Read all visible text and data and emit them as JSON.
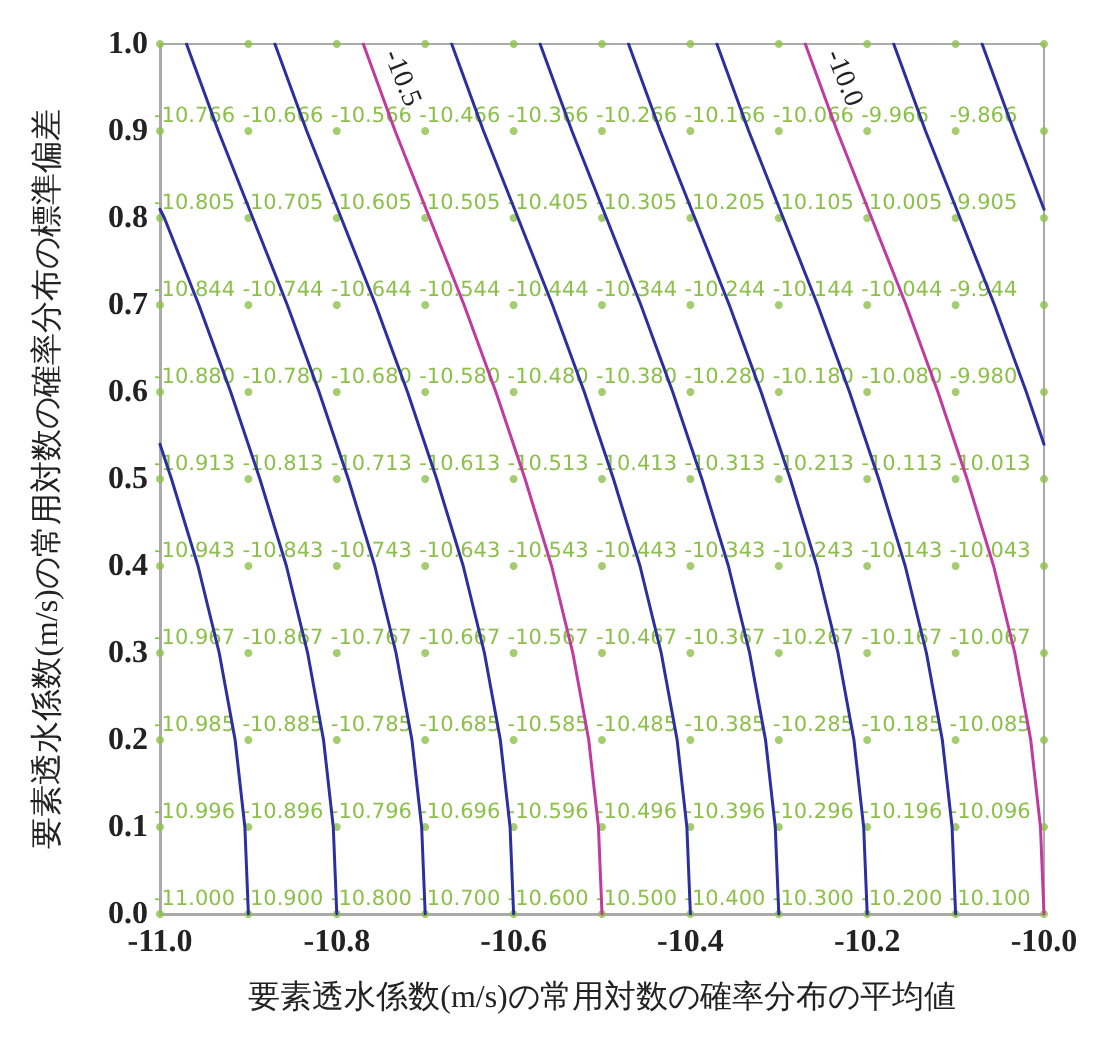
{
  "chart_data": {
    "type": "scatter",
    "xlabel": "要素透水係数(m/s)の常用対数の確率分布の平均値",
    "ylabel": "要素透水係数(m/s)の常用対数の確率分布の標準偏差",
    "xlim": [
      -11,
      -10
    ],
    "ylim": [
      0,
      1
    ],
    "xticks": [
      {
        "value": -11,
        "label": "-11.0"
      },
      {
        "value": -10.8,
        "label": "-10.8"
      },
      {
        "value": -10.6,
        "label": "-10.6"
      },
      {
        "value": -10.4,
        "label": "-10.4"
      },
      {
        "value": -10.2,
        "label": "-10.2"
      },
      {
        "value": -10,
        "label": "-10.0"
      }
    ],
    "yticks": [
      {
        "value": 0,
        "label": "0.0"
      },
      0.1,
      0.2,
      0.3,
      0.4,
      0.5,
      0.6,
      0.7,
      0.8,
      0.9,
      {
        "value": 1,
        "label": "1.0"
      }
    ],
    "grid": false,
    "legend": false,
    "line_style": "solid",
    "annotations": [
      {
        "text": "-11.000",
        "x": -11,
        "y": 0
      },
      {
        "text": "-10.900",
        "x": -10.9,
        "y": 0
      },
      {
        "text": "-10.800",
        "x": -10.8,
        "y": 0
      },
      {
        "text": "-10.700",
        "x": -10.7,
        "y": 0
      },
      {
        "text": "-10.600",
        "x": -10.6,
        "y": 0
      },
      {
        "text": "-10.500",
        "x": -10.5,
        "y": 0
      },
      {
        "text": "-10.400",
        "x": -10.4,
        "y": 0
      },
      {
        "text": "-10.300",
        "x": -10.3,
        "y": 0
      },
      {
        "text": "-10.200",
        "x": -10.2,
        "y": 0
      },
      {
        "text": "-10.100",
        "x": -10.1,
        "y": 0
      },
      {
        "text": "-10.996",
        "x": -11,
        "y": 0.1
      },
      {
        "text": "-10.896",
        "x": -10.9,
        "y": 0.1
      },
      {
        "text": "-10.796",
        "x": -10.8,
        "y": 0.1
      },
      {
        "text": "-10.696",
        "x": -10.7,
        "y": 0.1
      },
      {
        "text": "-10.596",
        "x": -10.6,
        "y": 0.1
      },
      {
        "text": "-10.496",
        "x": -10.5,
        "y": 0.1
      },
      {
        "text": "-10.396",
        "x": -10.4,
        "y": 0.1
      },
      {
        "text": "-10.296",
        "x": -10.3,
        "y": 0.1
      },
      {
        "text": "-10.196",
        "x": -10.2,
        "y": 0.1
      },
      {
        "text": "-10.096",
        "x": -10.1,
        "y": 0.1
      },
      {
        "text": "-10.985",
        "x": -11,
        "y": 0.2
      },
      {
        "text": "-10.885",
        "x": -10.9,
        "y": 0.2
      },
      {
        "text": "-10.785",
        "x": -10.8,
        "y": 0.2
      },
      {
        "text": "-10.685",
        "x": -10.7,
        "y": 0.2
      },
      {
        "text": "-10.585",
        "x": -10.6,
        "y": 0.2
      },
      {
        "text": "-10.485",
        "x": -10.5,
        "y": 0.2
      },
      {
        "text": "-10.385",
        "x": -10.4,
        "y": 0.2
      },
      {
        "text": "-10.285",
        "x": -10.3,
        "y": 0.2
      },
      {
        "text": "-10.185",
        "x": -10.2,
        "y": 0.2
      },
      {
        "text": "-10.085",
        "x": -10.1,
        "y": 0.2
      },
      {
        "text": "-10.967",
        "x": -11,
        "y": 0.3
      },
      {
        "text": "-10.867",
        "x": -10.9,
        "y": 0.3
      },
      {
        "text": "-10.767",
        "x": -10.8,
        "y": 0.3
      },
      {
        "text": "-10.667",
        "x": -10.7,
        "y": 0.3
      },
      {
        "text": "-10.567",
        "x": -10.6,
        "y": 0.3
      },
      {
        "text": "-10.467",
        "x": -10.5,
        "y": 0.3
      },
      {
        "text": "-10.367",
        "x": -10.4,
        "y": 0.3
      },
      {
        "text": "-10.267",
        "x": -10.3,
        "y": 0.3
      },
      {
        "text": "-10.167",
        "x": -10.2,
        "y": 0.3
      },
      {
        "text": "-10.067",
        "x": -10.1,
        "y": 0.3
      },
      {
        "text": "-10.943",
        "x": -11,
        "y": 0.4
      },
      {
        "text": "-10.843",
        "x": -10.9,
        "y": 0.4
      },
      {
        "text": "-10.743",
        "x": -10.8,
        "y": 0.4
      },
      {
        "text": "-10.643",
        "x": -10.7,
        "y": 0.4
      },
      {
        "text": "-10.543",
        "x": -10.6,
        "y": 0.4
      },
      {
        "text": "-10.443",
        "x": -10.5,
        "y": 0.4
      },
      {
        "text": "-10.343",
        "x": -10.4,
        "y": 0.4
      },
      {
        "text": "-10.243",
        "x": -10.3,
        "y": 0.4
      },
      {
        "text": "-10.143",
        "x": -10.2,
        "y": 0.4
      },
      {
        "text": "-10.043",
        "x": -10.1,
        "y": 0.4
      },
      {
        "text": "-10.913",
        "x": -11,
        "y": 0.5
      },
      {
        "text": "-10.813",
        "x": -10.9,
        "y": 0.5
      },
      {
        "text": "-10.713",
        "x": -10.8,
        "y": 0.5
      },
      {
        "text": "-10.613",
        "x": -10.7,
        "y": 0.5
      },
      {
        "text": "-10.513",
        "x": -10.6,
        "y": 0.5
      },
      {
        "text": "-10.413",
        "x": -10.5,
        "y": 0.5
      },
      {
        "text": "-10.313",
        "x": -10.4,
        "y": 0.5
      },
      {
        "text": "-10.213",
        "x": -10.3,
        "y": 0.5
      },
      {
        "text": "-10.113",
        "x": -10.2,
        "y": 0.5
      },
      {
        "text": "-10.013",
        "x": -10.1,
        "y": 0.5
      },
      {
        "text": "-10.880",
        "x": -11,
        "y": 0.6
      },
      {
        "text": "-10.780",
        "x": -10.9,
        "y": 0.6
      },
      {
        "text": "-10.680",
        "x": -10.8,
        "y": 0.6
      },
      {
        "text": "-10.580",
        "x": -10.7,
        "y": 0.6
      },
      {
        "text": "-10.480",
        "x": -10.6,
        "y": 0.6
      },
      {
        "text": "-10.380",
        "x": -10.5,
        "y": 0.6
      },
      {
        "text": "-10.280",
        "x": -10.4,
        "y": 0.6
      },
      {
        "text": "-10.180",
        "x": -10.3,
        "y": 0.6
      },
      {
        "text": "-10.080",
        "x": -10.2,
        "y": 0.6
      },
      {
        "text": "-9.980",
        "x": -10.1,
        "y": 0.6
      },
      {
        "text": "-10.844",
        "x": -11,
        "y": 0.7
      },
      {
        "text": "-10.744",
        "x": -10.9,
        "y": 0.7
      },
      {
        "text": "-10.644",
        "x": -10.8,
        "y": 0.7
      },
      {
        "text": "-10.544",
        "x": -10.7,
        "y": 0.7
      },
      {
        "text": "-10.444",
        "x": -10.6,
        "y": 0.7
      },
      {
        "text": "-10.344",
        "x": -10.5,
        "y": 0.7
      },
      {
        "text": "-10.244",
        "x": -10.4,
        "y": 0.7
      },
      {
        "text": "-10.144",
        "x": -10.3,
        "y": 0.7
      },
      {
        "text": "-10.044",
        "x": -10.2,
        "y": 0.7
      },
      {
        "text": "-9.944",
        "x": -10.1,
        "y": 0.7
      },
      {
        "text": "-10.805",
        "x": -11,
        "y": 0.8
      },
      {
        "text": "-10.705",
        "x": -10.9,
        "y": 0.8
      },
      {
        "text": "-10.605",
        "x": -10.8,
        "y": 0.8
      },
      {
        "text": "-10.505",
        "x": -10.7,
        "y": 0.8
      },
      {
        "text": "-10.405",
        "x": -10.6,
        "y": 0.8
      },
      {
        "text": "-10.305",
        "x": -10.5,
        "y": 0.8
      },
      {
        "text": "-10.205",
        "x": -10.4,
        "y": 0.8
      },
      {
        "text": "-10.105",
        "x": -10.3,
        "y": 0.8
      },
      {
        "text": "-10.005",
        "x": -10.2,
        "y": 0.8
      },
      {
        "text": "-9.905",
        "x": -10.1,
        "y": 0.8
      },
      {
        "text": "-10.766",
        "x": -11,
        "y": 0.9
      },
      {
        "text": "-10.666",
        "x": -10.9,
        "y": 0.9
      },
      {
        "text": "-10.566",
        "x": -10.8,
        "y": 0.9
      },
      {
        "text": "-10.466",
        "x": -10.7,
        "y": 0.9
      },
      {
        "text": "-10.366",
        "x": -10.6,
        "y": 0.9
      },
      {
        "text": "-10.266",
        "x": -10.5,
        "y": 0.9
      },
      {
        "text": "-10.166",
        "x": -10.4,
        "y": 0.9
      },
      {
        "text": "-10.066",
        "x": -10.3,
        "y": 0.9
      },
      {
        "text": "-9.966",
        "x": -10.2,
        "y": 0.9
      },
      {
        "text": "-9.866",
        "x": -10.1,
        "y": 0.9
      }
    ],
    "series": [
      {
        "type": "scatter",
        "marker": "circle",
        "color": "#8cc04a",
        "x": [
          -11,
          -10.9,
          -10.8,
          -10.7,
          -10.6,
          -10.5,
          -10.4,
          -10.3,
          -10.2,
          -10.1,
          -10,
          -11,
          -10.9,
          -10.8,
          -10.7,
          -10.6,
          -10.5,
          -10.4,
          -10.3,
          -10.2,
          -10.1,
          -10,
          -11,
          -10.9,
          -10.8,
          -10.7,
          -10.6,
          -10.5,
          -10.4,
          -10.3,
          -10.2,
          -10.1,
          -10,
          -11,
          -10.9,
          -10.8,
          -10.7,
          -10.6,
          -10.5,
          -10.4,
          -10.3,
          -10.2,
          -10.1,
          -10,
          -11,
          -10.9,
          -10.8,
          -10.7,
          -10.6,
          -10.5,
          -10.4,
          -10.3,
          -10.2,
          -10.1,
          -10,
          -11,
          -10.9,
          -10.8,
          -10.7,
          -10.6,
          -10.5,
          -10.4,
          -10.3,
          -10.2,
          -10.1,
          -10,
          -11,
          -10.9,
          -10.8,
          -10.7,
          -10.6,
          -10.5,
          -10.4,
          -10.3,
          -10.2,
          -10.1,
          -10,
          -11,
          -10.9,
          -10.8,
          -10.7,
          -10.6,
          -10.5,
          -10.4,
          -10.3,
          -10.2,
          -10.1,
          -10,
          -11,
          -10.9,
          -10.8,
          -10.7,
          -10.6,
          -10.5,
          -10.4,
          -10.3,
          -10.2,
          -10.1,
          -10,
          -11,
          -10.9,
          -10.8,
          -10.7,
          -10.6,
          -10.5,
          -10.4,
          -10.3,
          -10.2,
          -10.1,
          -10,
          -11,
          -10.9,
          -10.8,
          -10.7,
          -10.6,
          -10.5,
          -10.4,
          -10.3,
          -10.2,
          -10.1,
          -10
        ],
        "values": [
          0,
          0,
          0,
          0,
          0,
          0,
          0,
          0,
          0,
          0,
          0,
          0.1,
          0.1,
          0.1,
          0.1,
          0.1,
          0.1,
          0.1,
          0.1,
          0.1,
          0.1,
          0.1,
          0.2,
          0.2,
          0.2,
          0.2,
          0.2,
          0.2,
          0.2,
          0.2,
          0.2,
          0.2,
          0.2,
          0.3,
          0.3,
          0.3,
          0.3,
          0.3,
          0.3,
          0.3,
          0.3,
          0.3,
          0.3,
          0.3,
          0.4,
          0.4,
          0.4,
          0.4,
          0.4,
          0.4,
          0.4,
          0.4,
          0.4,
          0.4,
          0.4,
          0.5,
          0.5,
          0.5,
          0.5,
          0.5,
          0.5,
          0.5,
          0.5,
          0.5,
          0.5,
          0.5,
          0.6,
          0.6,
          0.6,
          0.6,
          0.6,
          0.6,
          0.6,
          0.6,
          0.6,
          0.6,
          0.6,
          0.7,
          0.7,
          0.7,
          0.7,
          0.7,
          0.7,
          0.7,
          0.7,
          0.7,
          0.7,
          0.7,
          0.8,
          0.8,
          0.8,
          0.8,
          0.8,
          0.8,
          0.8,
          0.8,
          0.8,
          0.8,
          0.8,
          0.9,
          0.9,
          0.9,
          0.9,
          0.9,
          0.9,
          0.9,
          0.9,
          0.9,
          0.9,
          0.9,
          1,
          1,
          1,
          1,
          1,
          1,
          1,
          1,
          1,
          1,
          1
        ]
      },
      {
        "type": "line",
        "marker": "none",
        "color": "#2b2fa0",
        "x": [
          -10.9,
          -10.904,
          -10.915,
          -10.933,
          -10.957,
          -10.987,
          -11
        ],
        "values": [
          0,
          0.1,
          0.2,
          0.3,
          0.4,
          0.5,
          0.54
        ]
      },
      {
        "type": "line",
        "marker": "none",
        "color": "#2b2fa0",
        "x": [
          -10.8,
          -10.804,
          -10.815,
          -10.833,
          -10.857,
          -10.887,
          -10.92,
          -10.956,
          -10.995,
          -11
        ],
        "values": [
          0,
          0.1,
          0.2,
          0.3,
          0.4,
          0.5,
          0.6,
          0.7,
          0.8,
          0.81
        ]
      },
      {
        "type": "line",
        "marker": "none",
        "color": "#2b2fa0",
        "x": [
          -10.7,
          -10.704,
          -10.715,
          -10.733,
          -10.757,
          -10.787,
          -10.82,
          -10.856,
          -10.895,
          -10.934,
          -10.97
        ],
        "values": [
          0,
          0.1,
          0.2,
          0.3,
          0.4,
          0.5,
          0.6,
          0.7,
          0.8,
          0.9,
          1
        ]
      },
      {
        "type": "line",
        "marker": "none",
        "color": "#2b2fa0",
        "x": [
          -10.6,
          -10.604,
          -10.615,
          -10.633,
          -10.657,
          -10.687,
          -10.72,
          -10.756,
          -10.795,
          -10.834,
          -10.87
        ],
        "values": [
          0,
          0.1,
          0.2,
          0.3,
          0.4,
          0.5,
          0.6,
          0.7,
          0.8,
          0.9,
          1
        ]
      },
      {
        "type": "line",
        "marker": "none",
        "name": "-10.5",
        "color": "#c03aa0",
        "x": [
          -10.5,
          -10.504,
          -10.515,
          -10.533,
          -10.557,
          -10.587,
          -10.62,
          -10.656,
          -10.695,
          -10.734,
          -10.77
        ],
        "values": [
          0,
          0.1,
          0.2,
          0.3,
          0.4,
          0.5,
          0.6,
          0.7,
          0.8,
          0.9,
          1
        ]
      },
      {
        "type": "line",
        "marker": "none",
        "color": "#2b2fa0",
        "x": [
          -10.4,
          -10.404,
          -10.415,
          -10.433,
          -10.457,
          -10.487,
          -10.52,
          -10.556,
          -10.595,
          -10.634,
          -10.67
        ],
        "values": [
          0,
          0.1,
          0.2,
          0.3,
          0.4,
          0.5,
          0.6,
          0.7,
          0.8,
          0.9,
          1
        ]
      },
      {
        "type": "line",
        "marker": "none",
        "color": "#2b2fa0",
        "x": [
          -10.3,
          -10.304,
          -10.315,
          -10.333,
          -10.357,
          -10.387,
          -10.42,
          -10.456,
          -10.495,
          -10.534,
          -10.57
        ],
        "values": [
          0,
          0.1,
          0.2,
          0.3,
          0.4,
          0.5,
          0.6,
          0.7,
          0.8,
          0.9,
          1
        ]
      },
      {
        "type": "line",
        "marker": "none",
        "color": "#2b2fa0",
        "x": [
          -10.2,
          -10.204,
          -10.215,
          -10.233,
          -10.257,
          -10.287,
          -10.32,
          -10.356,
          -10.395,
          -10.434,
          -10.47
        ],
        "values": [
          0,
          0.1,
          0.2,
          0.3,
          0.4,
          0.5,
          0.6,
          0.7,
          0.8,
          0.9,
          1
        ]
      },
      {
        "type": "line",
        "marker": "none",
        "color": "#2b2fa0",
        "x": [
          -10.1,
          -10.104,
          -10.115,
          -10.133,
          -10.157,
          -10.187,
          -10.22,
          -10.256,
          -10.295,
          -10.334,
          -10.37
        ],
        "values": [
          0,
          0.1,
          0.2,
          0.3,
          0.4,
          0.5,
          0.6,
          0.7,
          0.8,
          0.9,
          1
        ]
      },
      {
        "type": "line",
        "marker": "none",
        "name": "-10.0",
        "color": "#c03aa0",
        "x": [
          -10,
          -10.004,
          -10.015,
          -10.033,
          -10.057,
          -10.087,
          -10.12,
          -10.156,
          -10.195,
          -10.234,
          -10.27
        ],
        "values": [
          0,
          0.1,
          0.2,
          0.3,
          0.4,
          0.5,
          0.6,
          0.7,
          0.8,
          0.9,
          1
        ]
      },
      {
        "type": "line",
        "marker": "none",
        "color": "#2b2fa0",
        "x": [
          -10,
          -10.02,
          -10.056,
          -10.095,
          -10.134,
          -10.17
        ],
        "values": [
          0.54,
          0.6,
          0.7,
          0.8,
          0.9,
          1
        ]
      },
      {
        "type": "line",
        "marker": "none",
        "color": "#2b2fa0",
        "x": [
          -10,
          -10.034,
          -10.07
        ],
        "values": [
          0.81,
          0.9,
          1
        ]
      }
    ]
  }
}
